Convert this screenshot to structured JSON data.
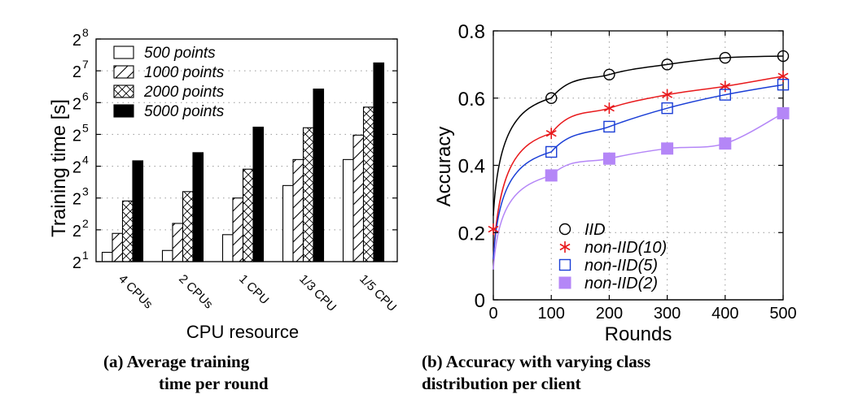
{
  "chart_data": [
    {
      "type": "bar",
      "categories": [
        "4 CPUs",
        "2 CPUs",
        "1 CPU",
        "1/3 CPU",
        "1/5 CPU"
      ],
      "series": [
        {
          "name": "500 points",
          "pattern": "empty",
          "values": [
            2.45,
            2.55,
            3.6,
            10.5,
            18.5
          ]
        },
        {
          "name": "1000 points",
          "pattern": "diagonal",
          "values": [
            3.7,
            4.6,
            8.0,
            18.5,
            31.5
          ]
        },
        {
          "name": "2000 points",
          "pattern": "crosshatch",
          "values": [
            7.5,
            9.2,
            15.0,
            37.0,
            58.0
          ]
        },
        {
          "name": "5000 points",
          "pattern": "solid",
          "values": [
            18.0,
            21.5,
            37.5,
            86.0,
            152.0
          ]
        }
      ],
      "xlabel": "CPU resource",
      "ylabel": "Training time [s]",
      "yscale": "log2",
      "ylim": [
        2,
        256
      ],
      "yticks": [
        {
          "value": 2,
          "base": "2",
          "exp": "1"
        },
        {
          "value": 4,
          "base": "2",
          "exp": "2"
        },
        {
          "value": 8,
          "base": "2",
          "exp": "3"
        },
        {
          "value": 16,
          "base": "2",
          "exp": "4"
        },
        {
          "value": 32,
          "base": "2",
          "exp": "5"
        },
        {
          "value": 64,
          "base": "2",
          "exp": "6"
        },
        {
          "value": 128,
          "base": "2",
          "exp": "7"
        },
        {
          "value": 256,
          "base": "2",
          "exp": "8"
        }
      ],
      "grid": true,
      "legend": "top-left"
    },
    {
      "type": "line",
      "x": [
        0,
        100,
        200,
        300,
        400,
        500
      ],
      "series": [
        {
          "name": "IID",
          "color": "#000000",
          "marker": "circle",
          "values": [
            null,
            0.6,
            0.67,
            0.7,
            0.72,
            0.725
          ]
        },
        {
          "name": "non-IID(10)",
          "color": "#e8191c",
          "marker": "asterisk",
          "values": [
            0.21,
            0.495,
            0.57,
            0.61,
            0.635,
            0.665
          ]
        },
        {
          "name": "non-IID(5)",
          "color": "#1a3ed6",
          "marker": "square-open",
          "values": [
            null,
            0.44,
            0.515,
            0.57,
            0.61,
            0.64
          ]
        },
        {
          "name": "non-IID(2)",
          "color": "#b486f7",
          "marker": "square-filled",
          "values": [
            null,
            0.37,
            0.42,
            0.45,
            0.465,
            0.555
          ]
        }
      ],
      "xlabel": "Rounds",
      "ylabel": "Accuracy",
      "xlim": [
        0,
        500
      ],
      "ylim": [
        0,
        0.8
      ],
      "xticks": [
        "0",
        "100",
        "200",
        "300",
        "400",
        "500"
      ],
      "yticks": [
        "0",
        "0.2",
        "0.4",
        "0.6",
        "0.8"
      ],
      "grid": true,
      "legend": "bottom-center"
    }
  ],
  "captions": {
    "a_line1": "(a) Average training",
    "a_line2": "time per round",
    "b_line1": "(b) Accuracy with varying class",
    "b_line2": "distribution per client"
  }
}
